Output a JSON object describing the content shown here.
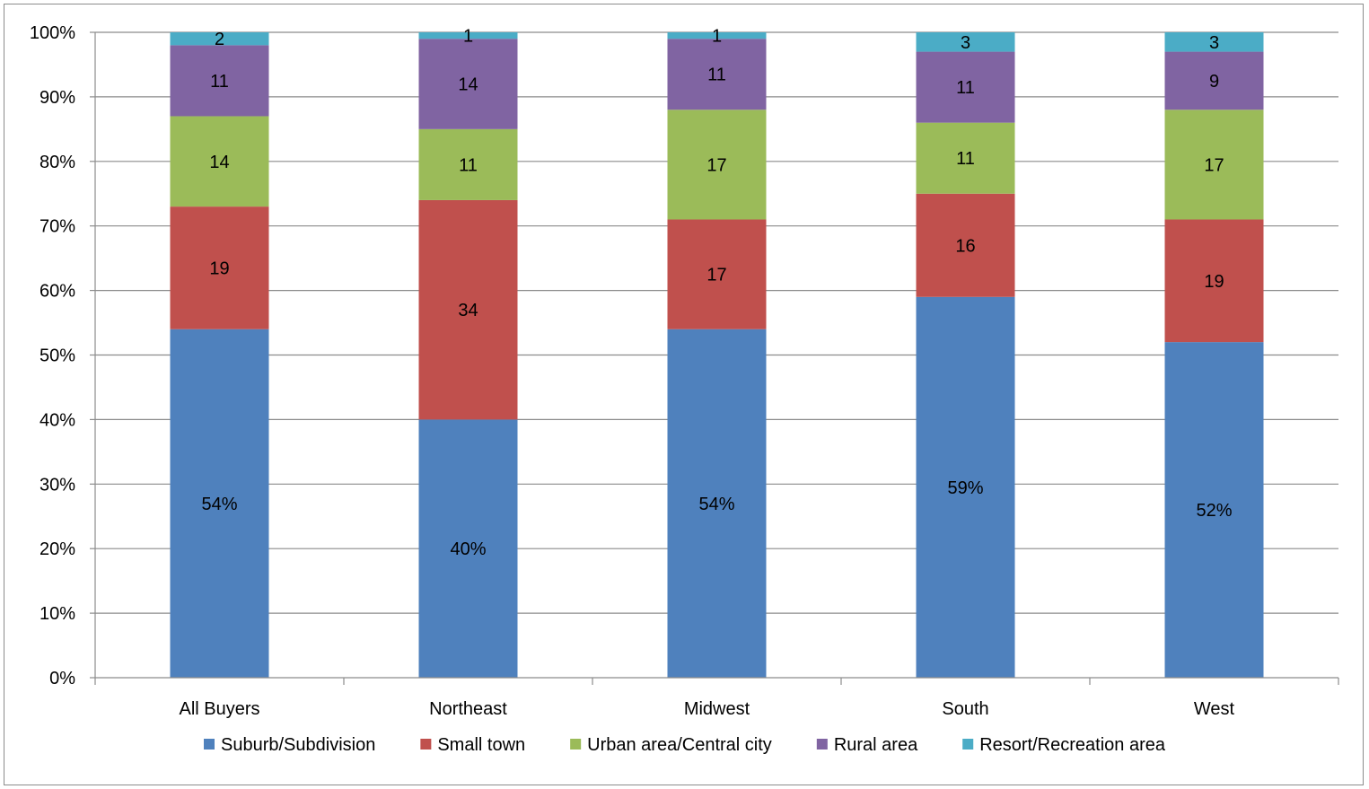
{
  "chart_data": {
    "type": "bar",
    "stacked": true,
    "percent": true,
    "title": "",
    "xlabel": "",
    "ylabel": "",
    "ylim": [
      0,
      100
    ],
    "y_ticks": [
      "0%",
      "10%",
      "20%",
      "30%",
      "40%",
      "50%",
      "60%",
      "70%",
      "80%",
      "90%",
      "100%"
    ],
    "grid": "horizontal",
    "legend_position": "bottom",
    "categories": [
      "All Buyers",
      "Northeast",
      "Midwest",
      "South",
      "West"
    ],
    "series": [
      {
        "name": "Suburb/Subdivision",
        "color": "#4F81BD",
        "values": [
          54,
          40,
          54,
          59,
          52
        ],
        "labels": [
          "54%",
          "40%",
          "54%",
          "59%",
          "52%"
        ]
      },
      {
        "name": "Small town",
        "color": "#C0504D",
        "values": [
          19,
          34,
          17,
          16,
          19
        ],
        "labels": [
          "19",
          "34",
          "17",
          "16",
          "19"
        ]
      },
      {
        "name": "Urban area/Central city",
        "color": "#9BBB59",
        "values": [
          14,
          11,
          17,
          11,
          17
        ],
        "labels": [
          "14",
          "11",
          "17",
          "11",
          "17"
        ]
      },
      {
        "name": "Rural area",
        "color": "#8064A2",
        "values": [
          11,
          14,
          11,
          11,
          9
        ],
        "labels": [
          "11",
          "14",
          "11",
          "11",
          "9"
        ]
      },
      {
        "name": "Resort/Recreation area",
        "color": "#4BACC6",
        "values": [
          2,
          1,
          1,
          3,
          3
        ],
        "labels": [
          "2",
          "1",
          "1",
          "3",
          "3"
        ]
      }
    ]
  }
}
